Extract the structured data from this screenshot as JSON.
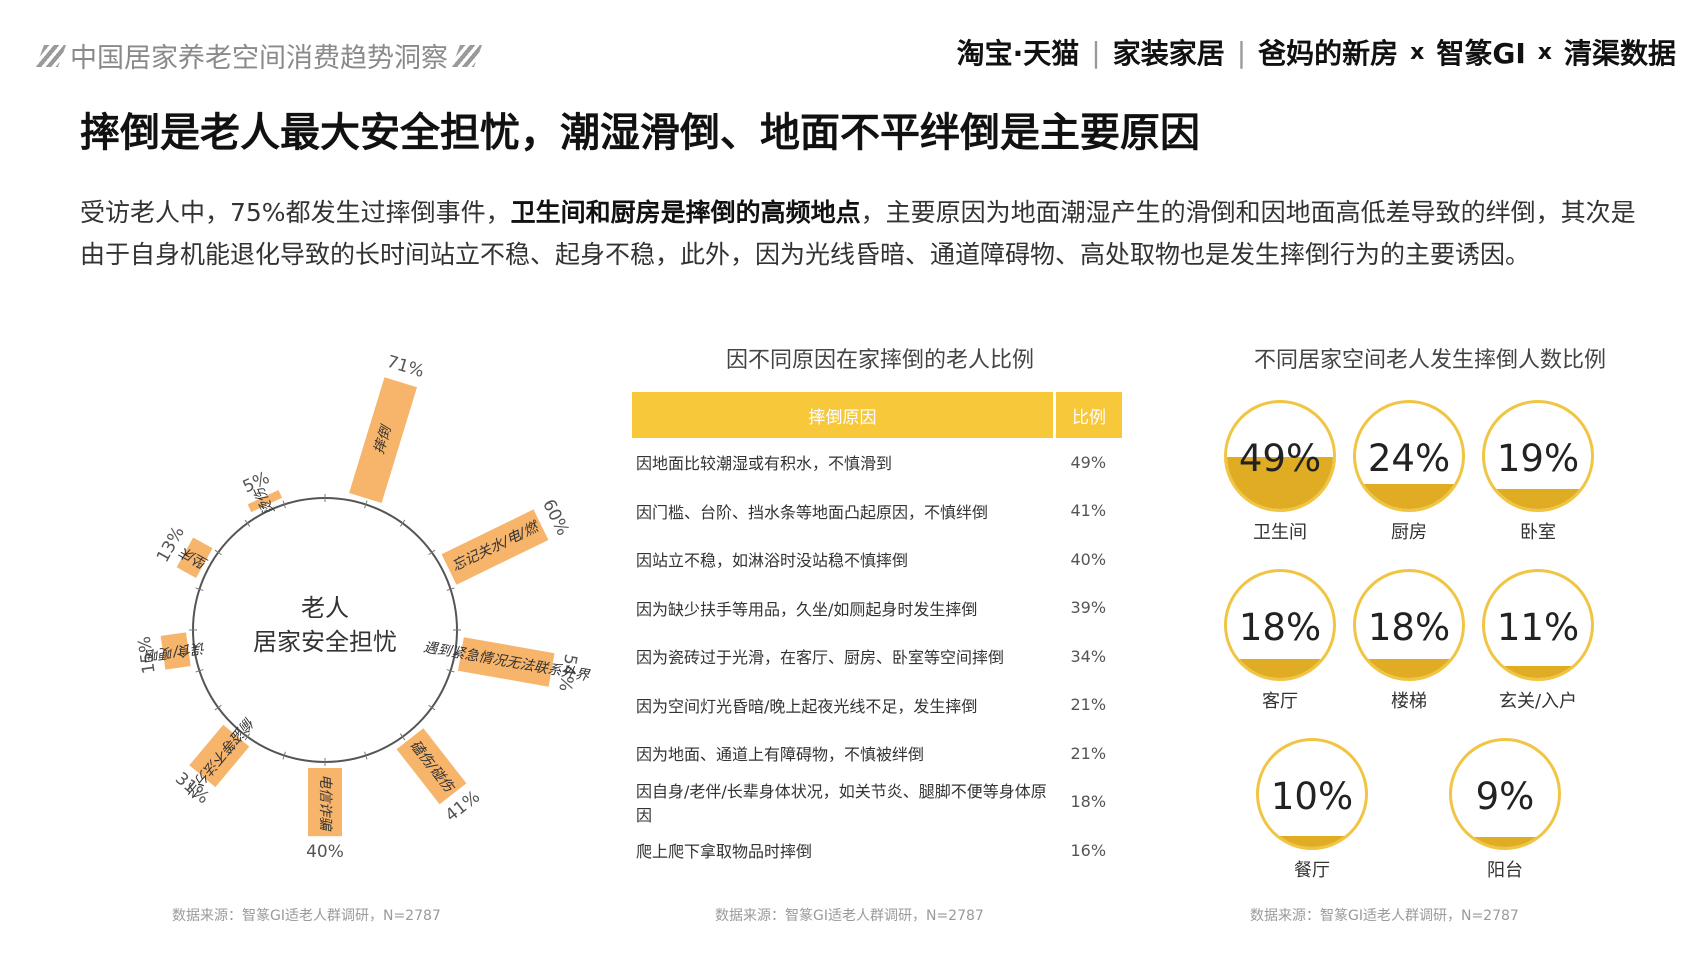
{
  "header": {
    "report_title": "中国居家养老空间消费趋势洞察",
    "brands": [
      "淘宝·天猫",
      "家装家居",
      "爸妈的新房",
      "x",
      "智篆GI",
      "x",
      "清渠数据"
    ]
  },
  "main_title": "摔倒是老人最大安全担忧，潮湿滑倒、地面不平绊倒是主要原因",
  "intro": {
    "part1": "受访老人中，75%都发生过摔倒事件，",
    "bold": "卫生间和厨房是摔倒的高频地点",
    "part2": "，主要原因为地面潮湿产生的滑倒和因地面高低差导致的绊倒，其次是由于自身机能退化导致的长时间站立不稳、起身不稳，此外，因为光线昏暗、通道障碍物、高处取物也是发生摔倒行为的主要诱因。"
  },
  "colors": {
    "accent": "#f7c93a",
    "bar": "#f7b46b",
    "circle_border": "#f1c544",
    "circle_fill": "#e0ac24"
  },
  "chart_data": [
    {
      "type": "bar",
      "layout": "radial",
      "center_label": [
        "老人",
        "居家安全担忧"
      ],
      "categories": [
        "摔倒",
        "忘记关水/电/燃",
        "遇到紧急情况无法联系外界",
        "磕伤/碰伤",
        "电信诈骗",
        "偷盗等不法分子",
        "误食/哽咽",
        "坠床",
        "烫伤"
      ],
      "values": [
        71,
        60,
        54,
        41,
        40,
        31,
        15,
        13,
        5
      ],
      "value_labels": [
        "71%",
        "60%",
        "54%",
        "41%",
        "40%",
        "31%",
        "15%",
        "13%",
        "5%"
      ]
    },
    {
      "type": "table",
      "title": "因不同原因在家摔倒的老人比例",
      "columns": [
        "摔倒原因",
        "比例"
      ],
      "rows": [
        [
          "因地面比较潮湿或有积水，不慎滑到",
          "49%"
        ],
        [
          "因门槛、台阶、挡水条等地面凸起原因，不慎绊倒",
          "41%"
        ],
        [
          "因站立不稳，如淋浴时没站稳不慎摔倒",
          "40%"
        ],
        [
          "因为缺少扶手等用品，久坐/如厕起身时发生摔倒",
          "39%"
        ],
        [
          "因为瓷砖过于光滑，在客厅、厨房、卧室等空间摔倒",
          "34%"
        ],
        [
          "因为空间灯光昏暗/晚上起夜光线不足，发生摔倒",
          "21%"
        ],
        [
          "因为地面、通道上有障碍物，不慎被绊倒",
          "21%"
        ],
        [
          "因自身/老伴/长辈身体状况，如关节炎、腿脚不便等身体原因",
          "18%"
        ],
        [
          "爬上爬下拿取物品时摔倒",
          "16%"
        ]
      ]
    },
    {
      "type": "bar",
      "layout": "fill-circles",
      "title": "不同居家空间老人发生摔倒人数比例",
      "categories": [
        "卫生间",
        "厨房",
        "卧室",
        "客厅",
        "楼梯",
        "玄关/入户",
        "餐厅",
        "阳台"
      ],
      "values": [
        49,
        24,
        19,
        18,
        18,
        11,
        10,
        9
      ],
      "value_labels": [
        "49%",
        "24%",
        "19%",
        "18%",
        "18%",
        "11%",
        "10%",
        "9%"
      ]
    }
  ],
  "sources": [
    "数据来源：智篆GI适老人群调研，N=2787",
    "数据来源：智篆GI适老人群调研，N=2787",
    "数据来源：智篆GI适老人群调研，N=2787"
  ]
}
